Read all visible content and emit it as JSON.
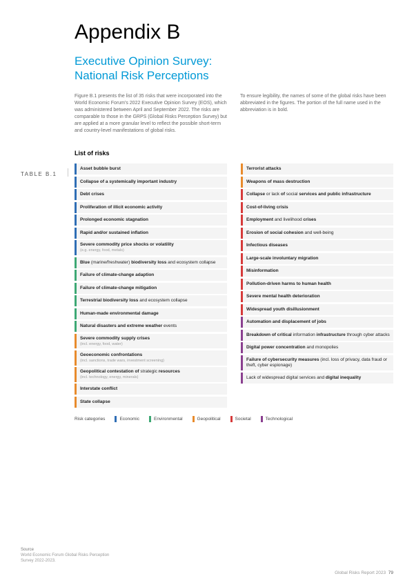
{
  "title": "Appendix B",
  "subtitle_line1": "Executive Opinion Survey:",
  "subtitle_line2": "National Risk Perceptions",
  "intro_left": "Figure B.1 presents the list of 35 risks that were incorporated into the World Economic Forum's 2022 Executive Opinion Survey (EOS), which was administered between April and September 2022. The risks are comparable to those in the GRPS (Global Risks Perception Survey) but are applied at a more granular level to reflect the possible short-term and country-level manifestations of global risks.",
  "intro_right": "To ensure legibility, the names of some of the global risks have been abbreviated in the figures. The portion of the full name used in the abbreviation is in bold.",
  "table_label": "TABLE B.1",
  "table_title": "List of risks",
  "colors": {
    "economic": "#2f6eb5",
    "environmental": "#3da874",
    "geopolitical": "#e88b2c",
    "societal": "#d63a3a",
    "technological": "#8a3f8f"
  },
  "left_col": [
    {
      "cat": "economic",
      "html": "<b>Asset bubble burst</b>"
    },
    {
      "cat": "economic",
      "html": "<b>Collapse of a systemically important industry</b>"
    },
    {
      "cat": "economic",
      "html": "<b>Debt crises</b>"
    },
    {
      "cat": "economic",
      "html": "<b>Proliferation of illicit economic activity</b>"
    },
    {
      "cat": "economic",
      "html": "<b>Prolonged economic stagnation</b>"
    },
    {
      "cat": "economic",
      "html": "<b>Rapid and/or sustained inflation</b>"
    },
    {
      "cat": "economic",
      "html": "<b>Severe commodity price shocks or volatility</b>",
      "sub": "(e.g. energy, food, metals)"
    },
    {
      "cat": "environmental",
      "html": "<b>Blue</b> (marine/freshwater) <b>biodiversity loss</b> and ecosystem collapse"
    },
    {
      "cat": "environmental",
      "html": "<b>Failure of climate-change adaption</b>"
    },
    {
      "cat": "environmental",
      "html": "<b>Failure of climate-change mitigation</b>"
    },
    {
      "cat": "environmental",
      "html": "<b>Terrestrial biodiversity loss</b> and ecosystem collapse"
    },
    {
      "cat": "environmental",
      "html": "<b>Human-made environmental damage</b>"
    },
    {
      "cat": "environmental",
      "html": "<b>Natural disasters and extreme weather</b> events"
    },
    {
      "cat": "geopolitical",
      "html": "<b>Severe commodity supply crises</b>",
      "sub": "(incl. energy, food, water)"
    },
    {
      "cat": "geopolitical",
      "html": "<b>Geoeconomic confrontations</b>",
      "sub": "(incl. sanctions, trade wars, investment screening)"
    },
    {
      "cat": "geopolitical",
      "html": "<b>Geopolitical contestation of</b> strategic <b>resources</b>",
      "sub": "(incl. technology, energy, minerals)"
    },
    {
      "cat": "geopolitical",
      "html": "<b>Interstate conflict</b>"
    },
    {
      "cat": "geopolitical",
      "html": "<b>State collapse</b>"
    }
  ],
  "right_col": [
    {
      "cat": "geopolitical",
      "html": "<b>Terrorist attacks</b>"
    },
    {
      "cat": "geopolitical",
      "html": "<b>Weapons of mass destruction</b>"
    },
    {
      "cat": "societal",
      "html": "<b>Collapse</b> or lack <b>of</b> social <b>services and public infrastructure</b>"
    },
    {
      "cat": "societal",
      "html": "<b>Cost-of-living crisis</b>"
    },
    {
      "cat": "societal",
      "html": "<b>Employment</b> and livelihood <b>crises</b>"
    },
    {
      "cat": "societal",
      "html": "<b>Erosion of social cohesion</b> and well-being"
    },
    {
      "cat": "societal",
      "html": "<b>Infectious diseases</b>"
    },
    {
      "cat": "societal",
      "html": "<b>Large-scale involuntary migration</b>"
    },
    {
      "cat": "societal",
      "html": "<b>Misinformation</b>"
    },
    {
      "cat": "societal",
      "html": "<b>Pollution-driven harms to human health</b>"
    },
    {
      "cat": "societal",
      "html": "<b>Severe mental health deterioration</b>"
    },
    {
      "cat": "societal",
      "html": "<b>Widespread youth disillusionment</b>"
    },
    {
      "cat": "technological",
      "html": "<b>Automation and displacement of jobs</b>"
    },
    {
      "cat": "technological",
      "html": "<b>Breakdown of critical</b> information <b>infrastructure</b> through cyber attacks"
    },
    {
      "cat": "technological",
      "html": "<b>Digital power concentration</b> and monopolies"
    },
    {
      "cat": "technological",
      "html": "<b>Failure of cybersecurity measures</b> (incl. loss of privacy, data fraud or theft, cyber espionage)"
    },
    {
      "cat": "technological",
      "html": "Lack of widespread digital services and <b>digital inequality</b>"
    }
  ],
  "legend_label": "Risk categories",
  "legend": [
    {
      "key": "economic",
      "label": "Economic"
    },
    {
      "key": "environmental",
      "label": "Environmental"
    },
    {
      "key": "geopolitical",
      "label": "Geopolitical"
    },
    {
      "key": "societal",
      "label": "Societal"
    },
    {
      "key": "technological",
      "label": "Technological"
    }
  ],
  "source_heading": "Source",
  "source_text": "World Economic Forum Global Risks Perception Survey 2022-2023.",
  "footer": "Global Risks Report 2023",
  "page_no": "79"
}
